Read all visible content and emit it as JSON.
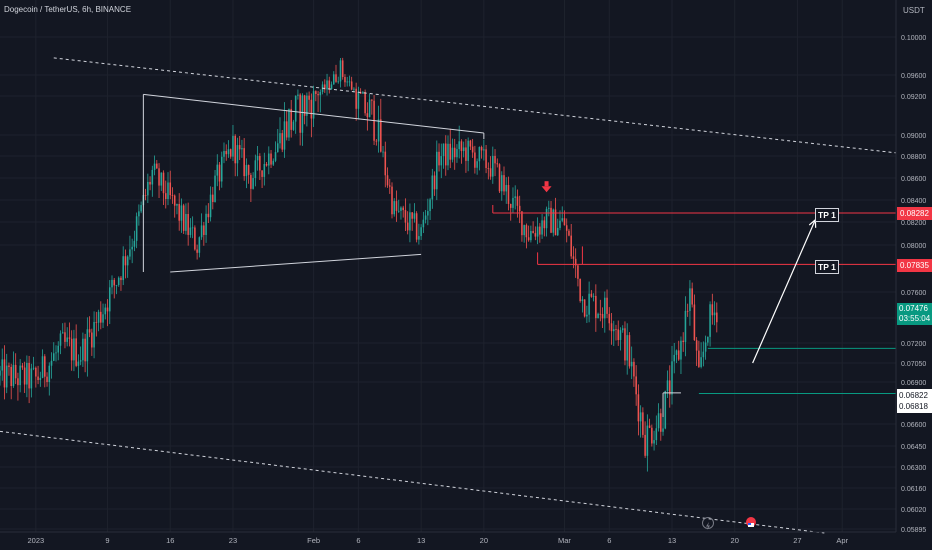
{
  "header": {
    "title": "Dogecoin / TetherUS, 6h, BINANCE"
  },
  "price_axis": {
    "unit": "USDT",
    "ticks": [
      "0.10000",
      "0.09600",
      "0.09200",
      "0.09000",
      "0.08800",
      "0.08600",
      "0.08400",
      "0.08200",
      "0.08000",
      "0.07600",
      "0.07400",
      "0.07200",
      "0.07050",
      "0.06900",
      "0.06600",
      "0.06450",
      "0.06300",
      "0.06160",
      "0.06020",
      "0.05895"
    ]
  },
  "time_axis": {
    "ticks": [
      "2023",
      "9",
      "16",
      "23",
      "Feb",
      "6",
      "13",
      "20",
      "Mar",
      "6",
      "13",
      "20",
      "27",
      "Apr"
    ]
  },
  "price_labels": {
    "tp1_level": "0.08282",
    "level2": "0.07835",
    "current_price": "0.07476",
    "countdown": "03:55:04",
    "level_a": "0.06822",
    "level_b": "0.06818"
  },
  "annotations": {
    "tp_top": "TP 1",
    "tp_mid": "TP 1"
  },
  "colors": {
    "up": "#26a69a",
    "down": "#ef5350",
    "bg": "#131722",
    "grid": "#1e222d",
    "red_line": "#f23645",
    "green_line": "#089981"
  },
  "icons": {
    "lightning": "lightning-icon",
    "flag": "flag-icon"
  },
  "chart_data": {
    "type": "candlestick",
    "title": "Dogecoin / TetherUS, 6h, BINANCE",
    "xlabel": "",
    "ylabel": "",
    "interval": "6h",
    "ylim": [
      0.0585,
      0.1015
    ],
    "x_range": [
      "2022-12-28",
      "2023-04-07"
    ],
    "price_path": [
      {
        "date": "2022-12-28",
        "price": 0.0695
      },
      {
        "date": "2023-01-01",
        "price": 0.0692
      },
      {
        "date": "2023-01-04",
        "price": 0.0718
      },
      {
        "date": "2023-01-06",
        "price": 0.0712
      },
      {
        "date": "2023-01-08",
        "price": 0.074
      },
      {
        "date": "2023-01-10",
        "price": 0.077
      },
      {
        "date": "2023-01-12",
        "price": 0.081
      },
      {
        "date": "2023-01-14",
        "price": 0.0865
      },
      {
        "date": "2023-01-16",
        "price": 0.084
      },
      {
        "date": "2023-01-19",
        "price": 0.08
      },
      {
        "date": "2023-01-21",
        "price": 0.0855
      },
      {
        "date": "2023-01-23",
        "price": 0.089
      },
      {
        "date": "2023-01-25",
        "price": 0.086
      },
      {
        "date": "2023-01-27",
        "price": 0.088
      },
      {
        "date": "2023-01-29",
        "price": 0.0905
      },
      {
        "date": "2023-01-31",
        "price": 0.0915
      },
      {
        "date": "2023-02-02",
        "price": 0.093
      },
      {
        "date": "2023-02-04",
        "price": 0.0965
      },
      {
        "date": "2023-02-06",
        "price": 0.092
      },
      {
        "date": "2023-02-08",
        "price": 0.0905
      },
      {
        "date": "2023-02-10",
        "price": 0.083
      },
      {
        "date": "2023-02-13",
        "price": 0.081
      },
      {
        "date": "2023-02-15",
        "price": 0.088
      },
      {
        "date": "2023-02-18",
        "price": 0.0885
      },
      {
        "date": "2023-02-21",
        "price": 0.087
      },
      {
        "date": "2023-02-23",
        "price": 0.084
      },
      {
        "date": "2023-02-25",
        "price": 0.081
      },
      {
        "date": "2023-02-27",
        "price": 0.0822
      },
      {
        "date": "2023-03-01",
        "price": 0.0818
      },
      {
        "date": "2023-03-03",
        "price": 0.0755
      },
      {
        "date": "2023-03-06",
        "price": 0.0745
      },
      {
        "date": "2023-03-08",
        "price": 0.0715
      },
      {
        "date": "2023-03-10",
        "price": 0.065
      },
      {
        "date": "2023-03-12",
        "price": 0.0668
      },
      {
        "date": "2023-03-14",
        "price": 0.072
      },
      {
        "date": "2023-03-15",
        "price": 0.076
      },
      {
        "date": "2023-03-16",
        "price": 0.069
      },
      {
        "date": "2023-03-17",
        "price": 0.0735
      },
      {
        "date": "2023-03-18",
        "price": 0.0748
      }
    ],
    "levels": [
      {
        "label": "TP 1",
        "price": 0.08282,
        "start": "2023-02-21",
        "color": "red"
      },
      {
        "label": "TP 1",
        "price": 0.07835,
        "start": "2023-02-26",
        "color": "red"
      },
      {
        "price": 0.0716,
        "start": "2023-03-17",
        "color": "green"
      },
      {
        "price": 0.06818,
        "start": "2023-03-16",
        "color": "green"
      }
    ],
    "channel": [
      {
        "from": [
          "2023-01-03",
          0.1022
        ],
        "to": [
          "2023-04-07",
          0.0883
        ]
      },
      {
        "from": [
          "2022-12-28",
          0.0655
        ],
        "to": [
          "2023-03-30",
          0.0587
        ]
      }
    ],
    "triangle": [
      {
        "from": [
          "2023-01-13",
          0.0923
        ],
        "to": [
          "2023-02-20",
          0.0901
        ]
      },
      {
        "from": [
          "2023-01-16",
          0.0777
        ],
        "to": [
          "2023-02-13",
          0.0792
        ]
      }
    ],
    "arrow": {
      "from": [
        "2023-03-22",
        0.0705
      ],
      "to": [
        "2023-03-29",
        0.0822
      ]
    },
    "marker": {
      "type": "down-arrow",
      "date": "2023-02-27",
      "price": 0.0848
    }
  }
}
